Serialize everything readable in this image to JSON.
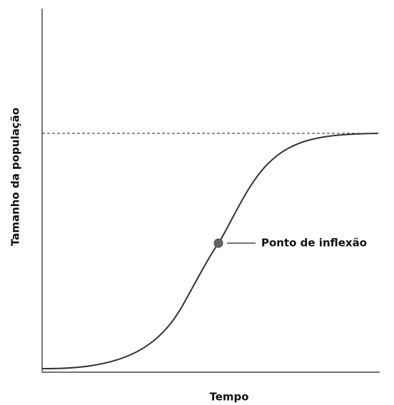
{
  "axes": {
    "x_label": "Tempo",
    "y_label": "Tamanho da população"
  },
  "annotation": "Ponto de inflexão"
}
